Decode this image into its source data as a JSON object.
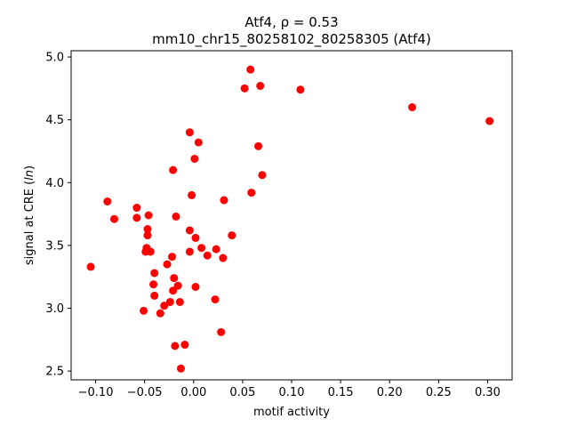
{
  "chart_data": {
    "type": "scatter",
    "title_line1": "Atf4, ρ = 0.53",
    "title_line2": "mm10_chr15_80258102_80258305 (Atf4)",
    "xlabel": "motif activity",
    "ylabel": "signal at CRE (ln)",
    "xlim": [
      -0.125,
      0.325
    ],
    "ylim": [
      2.43,
      5.05
    ],
    "xticks": [
      -0.1,
      -0.05,
      0.0,
      0.05,
      0.1,
      0.15,
      0.2,
      0.25,
      0.3
    ],
    "xtick_labels": [
      "−0.10",
      "−0.05",
      "0.00",
      "0.05",
      "0.10",
      "0.15",
      "0.20",
      "0.25",
      "0.30"
    ],
    "yticks": [
      2.5,
      3.0,
      3.5,
      4.0,
      4.5,
      5.0
    ],
    "ytick_labels": [
      "2.5",
      "3.0",
      "3.5",
      "4.0",
      "4.5",
      "5.0"
    ],
    "grid": false,
    "point_color": "#ff0000",
    "points": [
      {
        "x": 0.058,
        "y": 4.9
      },
      {
        "x": 0.068,
        "y": 4.77
      },
      {
        "x": 0.052,
        "y": 4.75
      },
      {
        "x": 0.109,
        "y": 4.74
      },
      {
        "x": 0.223,
        "y": 4.6
      },
      {
        "x": 0.302,
        "y": 4.49
      },
      {
        "x": -0.004,
        "y": 4.4
      },
      {
        "x": 0.005,
        "y": 4.32
      },
      {
        "x": 0.066,
        "y": 4.29
      },
      {
        "x": 0.001,
        "y": 4.19
      },
      {
        "x": -0.021,
        "y": 4.1
      },
      {
        "x": 0.07,
        "y": 4.06
      },
      {
        "x": 0.059,
        "y": 3.92
      },
      {
        "x": -0.002,
        "y": 3.9
      },
      {
        "x": 0.031,
        "y": 3.86
      },
      {
        "x": -0.088,
        "y": 3.85
      },
      {
        "x": -0.058,
        "y": 3.8
      },
      {
        "x": -0.046,
        "y": 3.74
      },
      {
        "x": -0.018,
        "y": 3.73
      },
      {
        "x": -0.058,
        "y": 3.72
      },
      {
        "x": -0.081,
        "y": 3.71
      },
      {
        "x": -0.047,
        "y": 3.63
      },
      {
        "x": -0.004,
        "y": 3.62
      },
      {
        "x": -0.047,
        "y": 3.58
      },
      {
        "x": 0.039,
        "y": 3.58
      },
      {
        "x": 0.002,
        "y": 3.56
      },
      {
        "x": -0.048,
        "y": 3.48
      },
      {
        "x": 0.008,
        "y": 3.48
      },
      {
        "x": 0.023,
        "y": 3.47
      },
      {
        "x": -0.049,
        "y": 3.45
      },
      {
        "x": -0.044,
        "y": 3.45
      },
      {
        "x": -0.004,
        "y": 3.45
      },
      {
        "x": 0.014,
        "y": 3.42
      },
      {
        "x": -0.022,
        "y": 3.41
      },
      {
        "x": 0.03,
        "y": 3.4
      },
      {
        "x": -0.027,
        "y": 3.35
      },
      {
        "x": -0.105,
        "y": 3.33
      },
      {
        "x": -0.04,
        "y": 3.28
      },
      {
        "x": -0.02,
        "y": 3.24
      },
      {
        "x": -0.041,
        "y": 3.19
      },
      {
        "x": -0.016,
        "y": 3.18
      },
      {
        "x": 0.002,
        "y": 3.17
      },
      {
        "x": -0.021,
        "y": 3.14
      },
      {
        "x": -0.04,
        "y": 3.1
      },
      {
        "x": 0.022,
        "y": 3.07
      },
      {
        "x": -0.024,
        "y": 3.05
      },
      {
        "x": -0.014,
        "y": 3.05
      },
      {
        "x": -0.03,
        "y": 3.02
      },
      {
        "x": -0.051,
        "y": 2.98
      },
      {
        "x": -0.034,
        "y": 2.96
      },
      {
        "x": 0.028,
        "y": 2.81
      },
      {
        "x": -0.019,
        "y": 2.7
      },
      {
        "x": -0.009,
        "y": 2.71
      },
      {
        "x": -0.013,
        "y": 2.52
      }
    ]
  }
}
